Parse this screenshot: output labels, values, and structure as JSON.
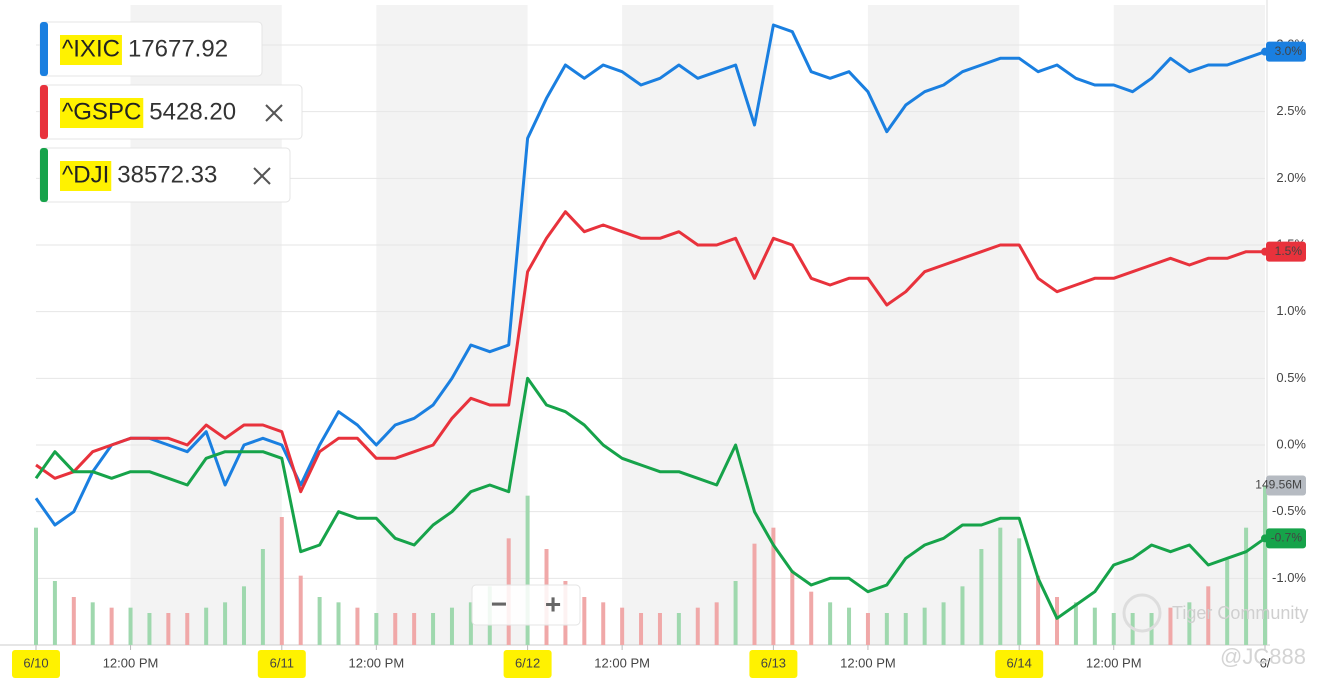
{
  "chart_data": {
    "type": "line",
    "xlim": [
      0,
      32.5
    ],
    "xticks": [
      {
        "value": 0,
        "label": "6/10",
        "highlight": true
      },
      {
        "value": 2.5,
        "label": "12:00 PM"
      },
      {
        "value": 6.5,
        "label": "6/11",
        "highlight": true
      },
      {
        "value": 9,
        "label": "12:00 PM"
      },
      {
        "value": 13,
        "label": "6/12",
        "highlight": true
      },
      {
        "value": 15.5,
        "label": "12:00 PM"
      },
      {
        "value": 19.5,
        "label": "6/13",
        "highlight": true
      },
      {
        "value": 22,
        "label": "12:00 PM"
      },
      {
        "value": 26,
        "label": "6/14",
        "highlight": true
      },
      {
        "value": 28.5,
        "label": "12:00 PM"
      },
      {
        "value": 32.5,
        "label": "6/"
      }
    ],
    "ylim": [
      -1.5,
      3.3
    ],
    "yticks": [
      {
        "value": -1,
        "label": "-1.0%"
      },
      {
        "value": -0.5,
        "label": "-0.5%"
      },
      {
        "value": 0,
        "label": "0.0%"
      },
      {
        "value": 0.5,
        "label": "0.5%"
      },
      {
        "value": 1,
        "label": "1.0%"
      },
      {
        "value": 1.5,
        "label": "1.5%"
      },
      {
        "value": 2,
        "label": "2.0%"
      },
      {
        "value": 2.5,
        "label": "2.5%"
      },
      {
        "value": 3,
        "label": "3.0%"
      }
    ],
    "grid": true,
    "x": [
      0,
      0.5,
      1,
      1.5,
      2,
      2.5,
      3,
      3.5,
      4,
      4.5,
      5,
      5.5,
      6,
      6.5,
      7,
      7.5,
      8,
      8.5,
      9,
      9.5,
      10,
      10.5,
      11,
      11.5,
      12,
      12.5,
      13,
      13.5,
      14,
      14.5,
      15,
      15.5,
      16,
      16.5,
      17,
      17.5,
      18,
      18.5,
      19,
      19.5,
      20,
      20.5,
      21,
      21.5,
      22,
      22.5,
      23,
      23.5,
      24,
      24.5,
      25,
      25.5,
      26,
      26.5,
      27,
      27.5,
      28,
      28.5,
      29,
      29.5,
      30,
      30.5,
      31,
      31.5,
      32,
      32.5
    ],
    "series": [
      {
        "name": "^IXIC",
        "price": "17677.92",
        "color": "#1a7fe0",
        "last_label": "3.0%",
        "values": [
          -0.4,
          -0.6,
          -0.5,
          -0.2,
          0.0,
          0.05,
          0.05,
          0.0,
          -0.05,
          0.1,
          -0.3,
          0.0,
          0.05,
          0.0,
          -0.3,
          0.0,
          0.25,
          0.15,
          0.0,
          0.15,
          0.2,
          0.3,
          0.5,
          0.75,
          0.7,
          0.75,
          2.3,
          2.6,
          2.85,
          2.75,
          2.85,
          2.8,
          2.7,
          2.75,
          2.85,
          2.75,
          2.8,
          2.85,
          2.4,
          3.15,
          3.1,
          2.8,
          2.75,
          2.8,
          2.65,
          2.35,
          2.55,
          2.65,
          2.7,
          2.8,
          2.85,
          2.9,
          2.9,
          2.8,
          2.85,
          2.75,
          2.7,
          2.7,
          2.65,
          2.75,
          2.9,
          2.8,
          2.85,
          2.85,
          2.9,
          2.95
        ]
      },
      {
        "name": "^GSPC",
        "price": "5428.20",
        "color": "#e8323c",
        "last_label": "1.5%",
        "values": [
          -0.15,
          -0.25,
          -0.2,
          -0.05,
          0.0,
          0.05,
          0.05,
          0.05,
          0.0,
          0.15,
          0.05,
          0.15,
          0.15,
          0.1,
          -0.35,
          -0.05,
          0.05,
          0.05,
          -0.1,
          -0.1,
          -0.05,
          0.0,
          0.2,
          0.35,
          0.3,
          0.3,
          1.3,
          1.55,
          1.75,
          1.6,
          1.65,
          1.6,
          1.55,
          1.55,
          1.6,
          1.5,
          1.5,
          1.55,
          1.25,
          1.55,
          1.5,
          1.25,
          1.2,
          1.25,
          1.25,
          1.05,
          1.15,
          1.3,
          1.35,
          1.4,
          1.45,
          1.5,
          1.5,
          1.25,
          1.15,
          1.2,
          1.25,
          1.25,
          1.3,
          1.35,
          1.4,
          1.35,
          1.4,
          1.4,
          1.45,
          1.45
        ]
      },
      {
        "name": "^DJI",
        "price": "38572.33",
        "color": "#16a34a",
        "last_label": "-0.7%",
        "values": [
          -0.25,
          -0.05,
          -0.2,
          -0.2,
          -0.25,
          -0.2,
          -0.2,
          -0.25,
          -0.3,
          -0.1,
          -0.05,
          -0.05,
          -0.05,
          -0.1,
          -0.8,
          -0.75,
          -0.5,
          -0.55,
          -0.55,
          -0.7,
          -0.75,
          -0.6,
          -0.5,
          -0.35,
          -0.3,
          -0.35,
          0.5,
          0.3,
          0.25,
          0.15,
          0.0,
          -0.1,
          -0.15,
          -0.2,
          -0.2,
          -0.25,
          -0.3,
          0.0,
          -0.5,
          -0.75,
          -0.95,
          -1.05,
          -1.0,
          -1.0,
          -1.1,
          -1.05,
          -0.85,
          -0.75,
          -0.7,
          -0.6,
          -0.6,
          -0.55,
          -0.55,
          -1.0,
          -1.3,
          -1.2,
          -1.1,
          -0.9,
          -0.85,
          -0.75,
          -0.8,
          -0.75,
          -0.9,
          -0.85,
          -0.8,
          -0.7
        ]
      }
    ],
    "volume": {
      "last_label": "149.56M",
      "ylim": [
        0,
        600
      ],
      "colors": [
        "#9fd8ae",
        "#f0a8a8"
      ],
      "values": [
        110,
        60,
        45,
        40,
        35,
        35,
        30,
        30,
        30,
        35,
        40,
        55,
        90,
        120,
        65,
        45,
        40,
        35,
        30,
        30,
        30,
        30,
        35,
        40,
        55,
        100,
        140,
        90,
        60,
        45,
        40,
        35,
        30,
        30,
        30,
        35,
        40,
        60,
        95,
        110,
        70,
        50,
        40,
        35,
        30,
        30,
        30,
        35,
        40,
        55,
        90,
        110,
        100,
        65,
        45,
        40,
        35,
        30,
        30,
        30,
        35,
        40,
        55,
        80,
        110,
        149.56
      ]
    },
    "zoom_controls": [
      "−",
      "+"
    ],
    "watermarks": [
      "Tiger Community",
      "@JC888"
    ]
  }
}
